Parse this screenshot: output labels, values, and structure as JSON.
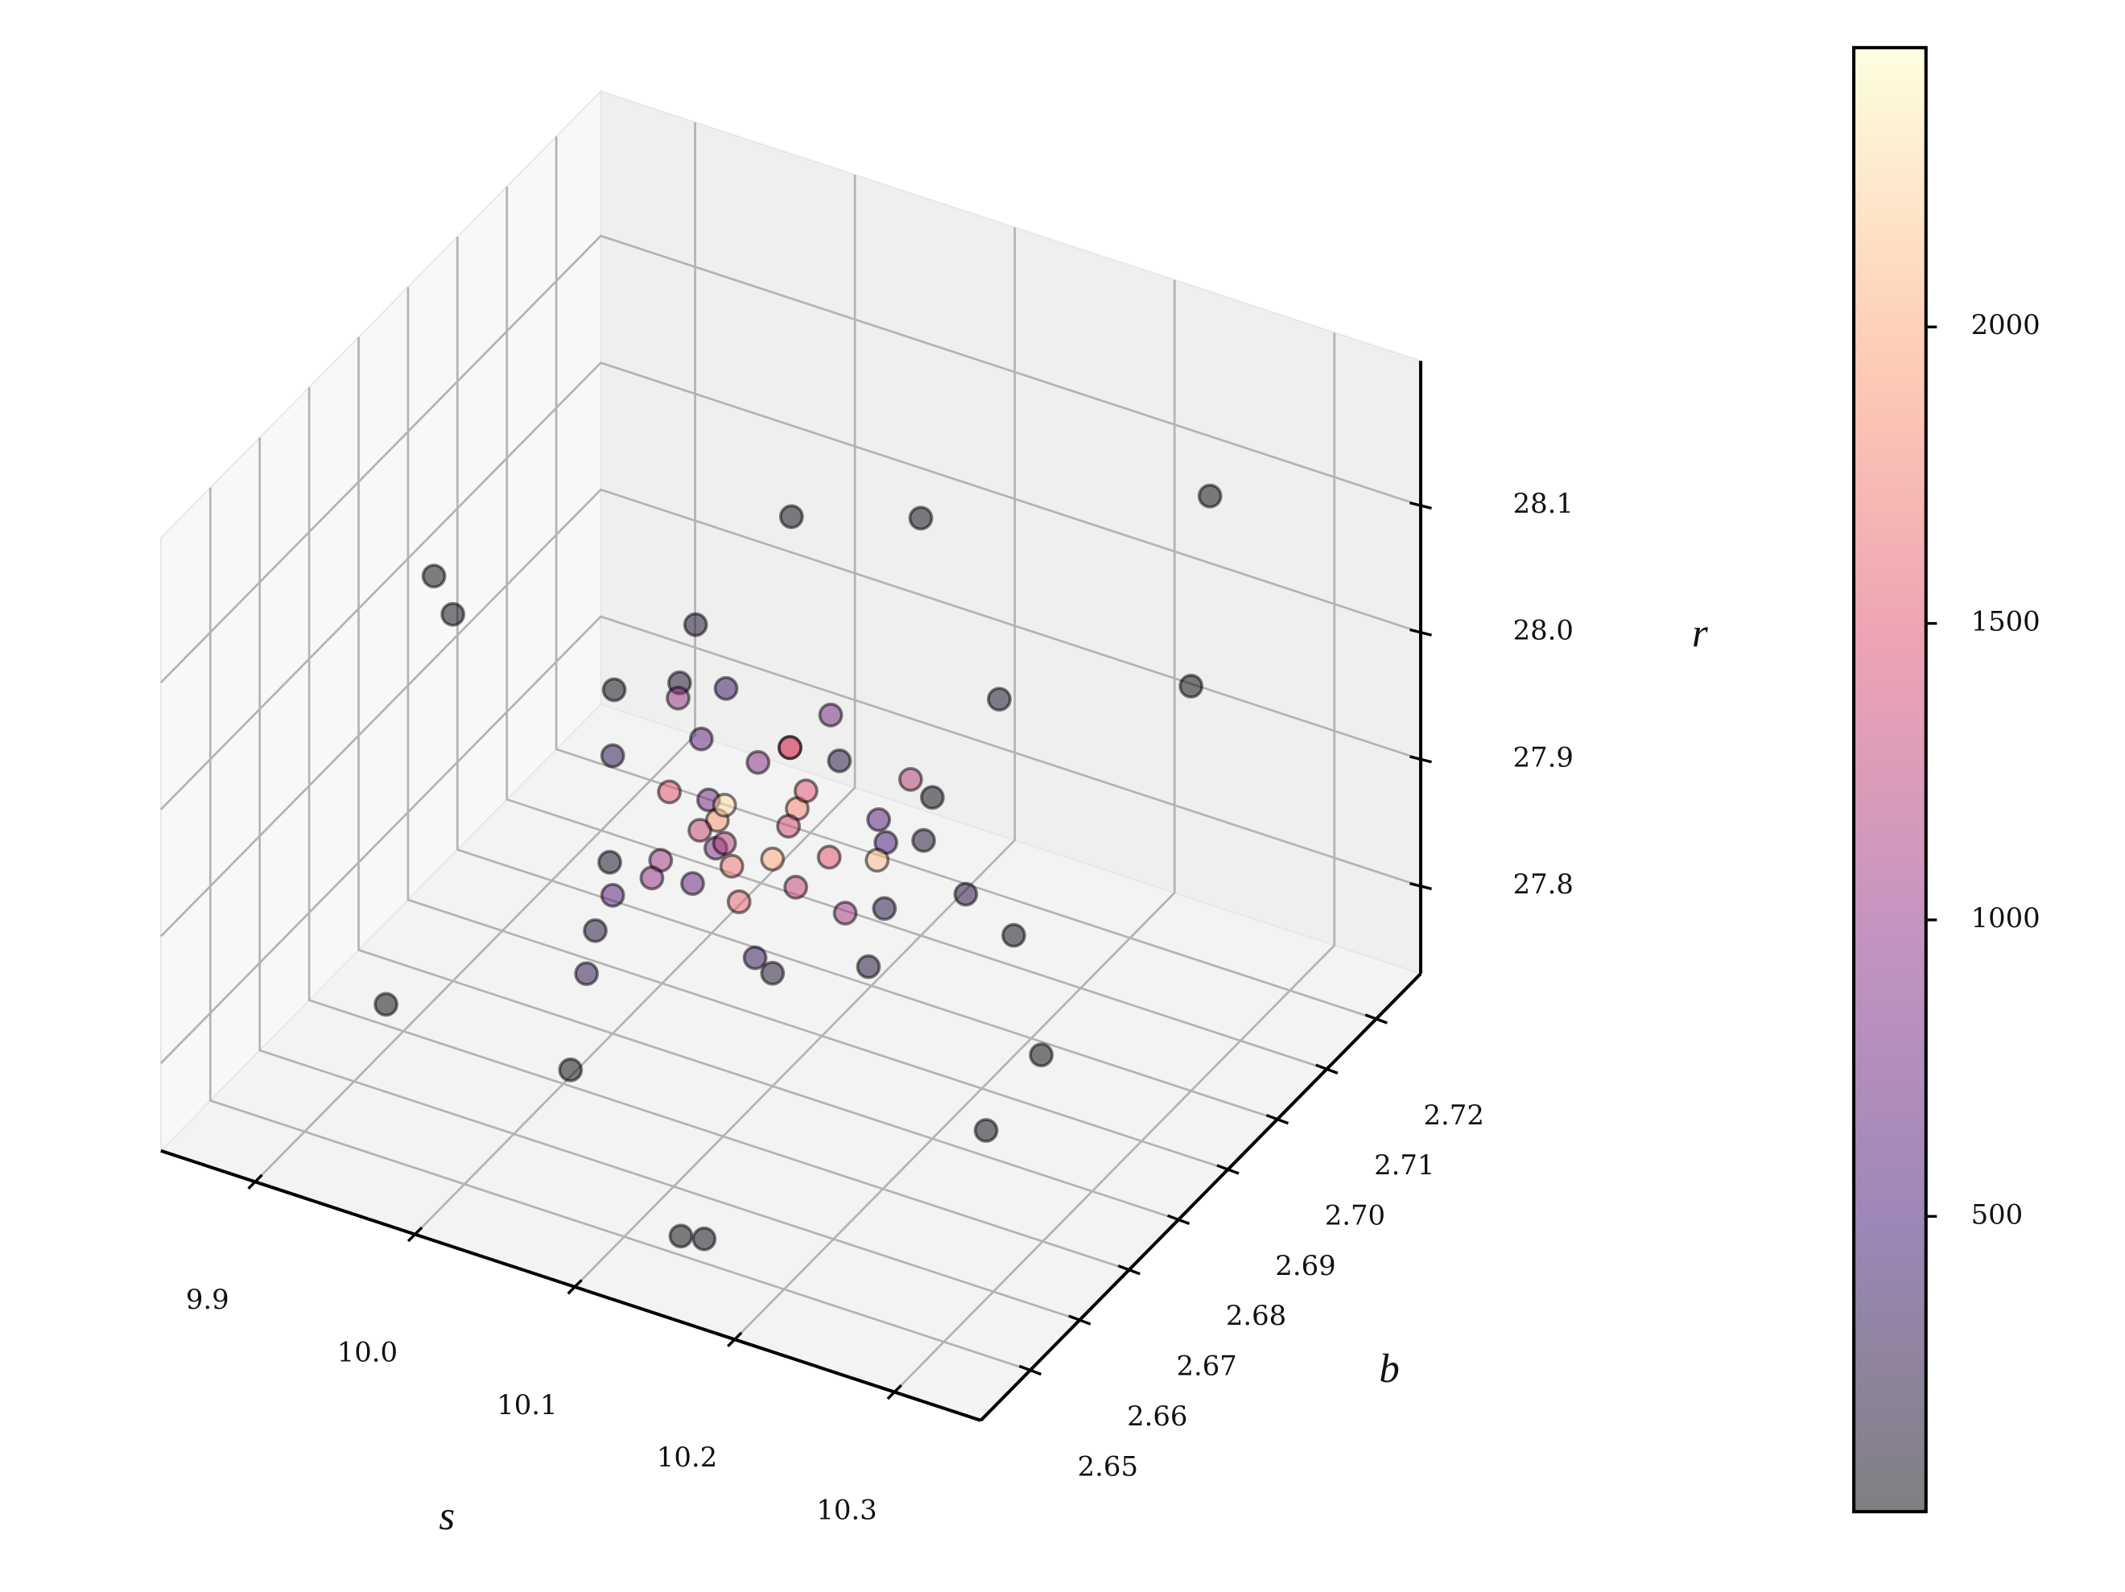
{
  "chart_data": {
    "type": "scatter3d",
    "xlabel": "s",
    "ylabel": "b",
    "zlabel": "r",
    "x": [
      9.95,
      9.9,
      10.3,
      10.25,
      10.05,
      10.1,
      10.2,
      10.33,
      9.97,
      10.15,
      9.92,
      10.12,
      10.02,
      10.28,
      10.22,
      10.0,
      10.04,
      10.08,
      10.12,
      10.16,
      9.98,
      10.06,
      10.14,
      10.1,
      10.02,
      10.18,
      10.08,
      10.04,
      10.12,
      10.06,
      10.1,
      10.07,
      10.09,
      10.11,
      10.05,
      10.13,
      10.08,
      10.03,
      10.15,
      10.01,
      10.09,
      10.06,
      10.12,
      10.07,
      10.1,
      10.04,
      10.14,
      10.08,
      10.11,
      10.05,
      9.99,
      10.17,
      10.03,
      10.19,
      10.07,
      10.13,
      10.0,
      10.21,
      10.09,
      10.02
    ],
    "y": [
      2.66,
      2.68,
      2.7,
      2.72,
      2.7,
      2.71,
      2.68,
      2.66,
      2.69,
      2.65,
      2.66,
      2.655,
      2.665,
      2.665,
      2.69,
      2.68,
      2.69,
      2.7,
      2.67,
      2.68,
      2.7,
      2.66,
      2.69,
      2.68,
      2.67,
      2.7,
      2.675,
      2.685,
      2.695,
      2.68,
      2.685,
      2.68,
      2.69,
      2.68,
      2.685,
      2.675,
      2.69,
      2.68,
      2.685,
      2.69,
      2.675,
      2.69,
      2.685,
      2.68,
      2.68,
      2.675,
      2.695,
      2.69,
      2.67,
      2.68,
      2.7,
      2.68,
      2.665,
      2.69,
      2.675,
      2.685,
      2.68,
      2.675,
      2.695,
      2.685
    ],
    "z": [
      28.15,
      28.02,
      28.05,
      28.1,
      28.08,
      28.06,
      28.0,
      27.93,
      27.95,
      27.75,
      27.8,
      27.72,
      27.77,
      27.83,
      27.86,
      27.95,
      27.98,
      27.9,
      27.88,
      27.85,
      27.92,
      27.97,
      27.9,
      27.82,
      27.86,
      27.99,
      27.93,
      27.96,
      27.89,
      27.94,
      27.93,
      27.91,
      27.92,
      27.94,
      27.9,
      27.92,
      27.95,
      27.88,
      27.91,
      27.96,
      27.92,
      27.93,
      27.9,
      27.94,
      27.91,
      27.89,
      27.93,
      27.95,
      27.92,
      27.87,
      27.97,
      27.9,
      27.85,
      27.88,
      27.94,
      27.86,
      27.84,
      27.99,
      27.96,
      27.91
    ],
    "c": [
      10,
      15,
      20,
      12,
      25,
      18,
      30,
      10,
      40,
      15,
      20,
      8,
      22,
      16,
      50,
      300,
      400,
      250,
      350,
      200,
      150,
      100,
      500,
      180,
      220,
      120,
      900,
      700,
      600,
      800,
      1800,
      1200,
      1500,
      1400,
      1900,
      1300,
      1600,
      1100,
      2100,
      1000,
      1700,
      900,
      1500,
      2300,
      2000,
      1000,
      1200,
      1400,
      1600,
      700,
      150,
      250,
      300,
      200,
      1300,
      1100,
      600,
      180,
      800,
      1500
    ],
    "colormap": "magma",
    "alpha": 0.5,
    "xlim": [
      9.841,
      10.354
    ],
    "xticks": [
      9.9,
      {
        "value": 10.0,
        "label": "10.0"
      },
      10.1,
      10.2,
      10.3
    ],
    "ylim": [
      2.64,
      2.729
    ],
    "yticks": [
      2.65,
      2.66,
      2.67,
      2.68,
      2.69,
      {
        "value": 2.7,
        "label": "2.70"
      },
      2.71,
      2.72
    ],
    "zlim": [
      27.731,
      28.214
    ],
    "zticks": [
      27.8,
      27.9,
      {
        "value": 28.0,
        "label": "28.0"
      },
      28.1
    ],
    "clim": [
      2,
      2471
    ],
    "cticks": [
      500,
      1000,
      1500,
      2000
    ],
    "grid": true
  }
}
